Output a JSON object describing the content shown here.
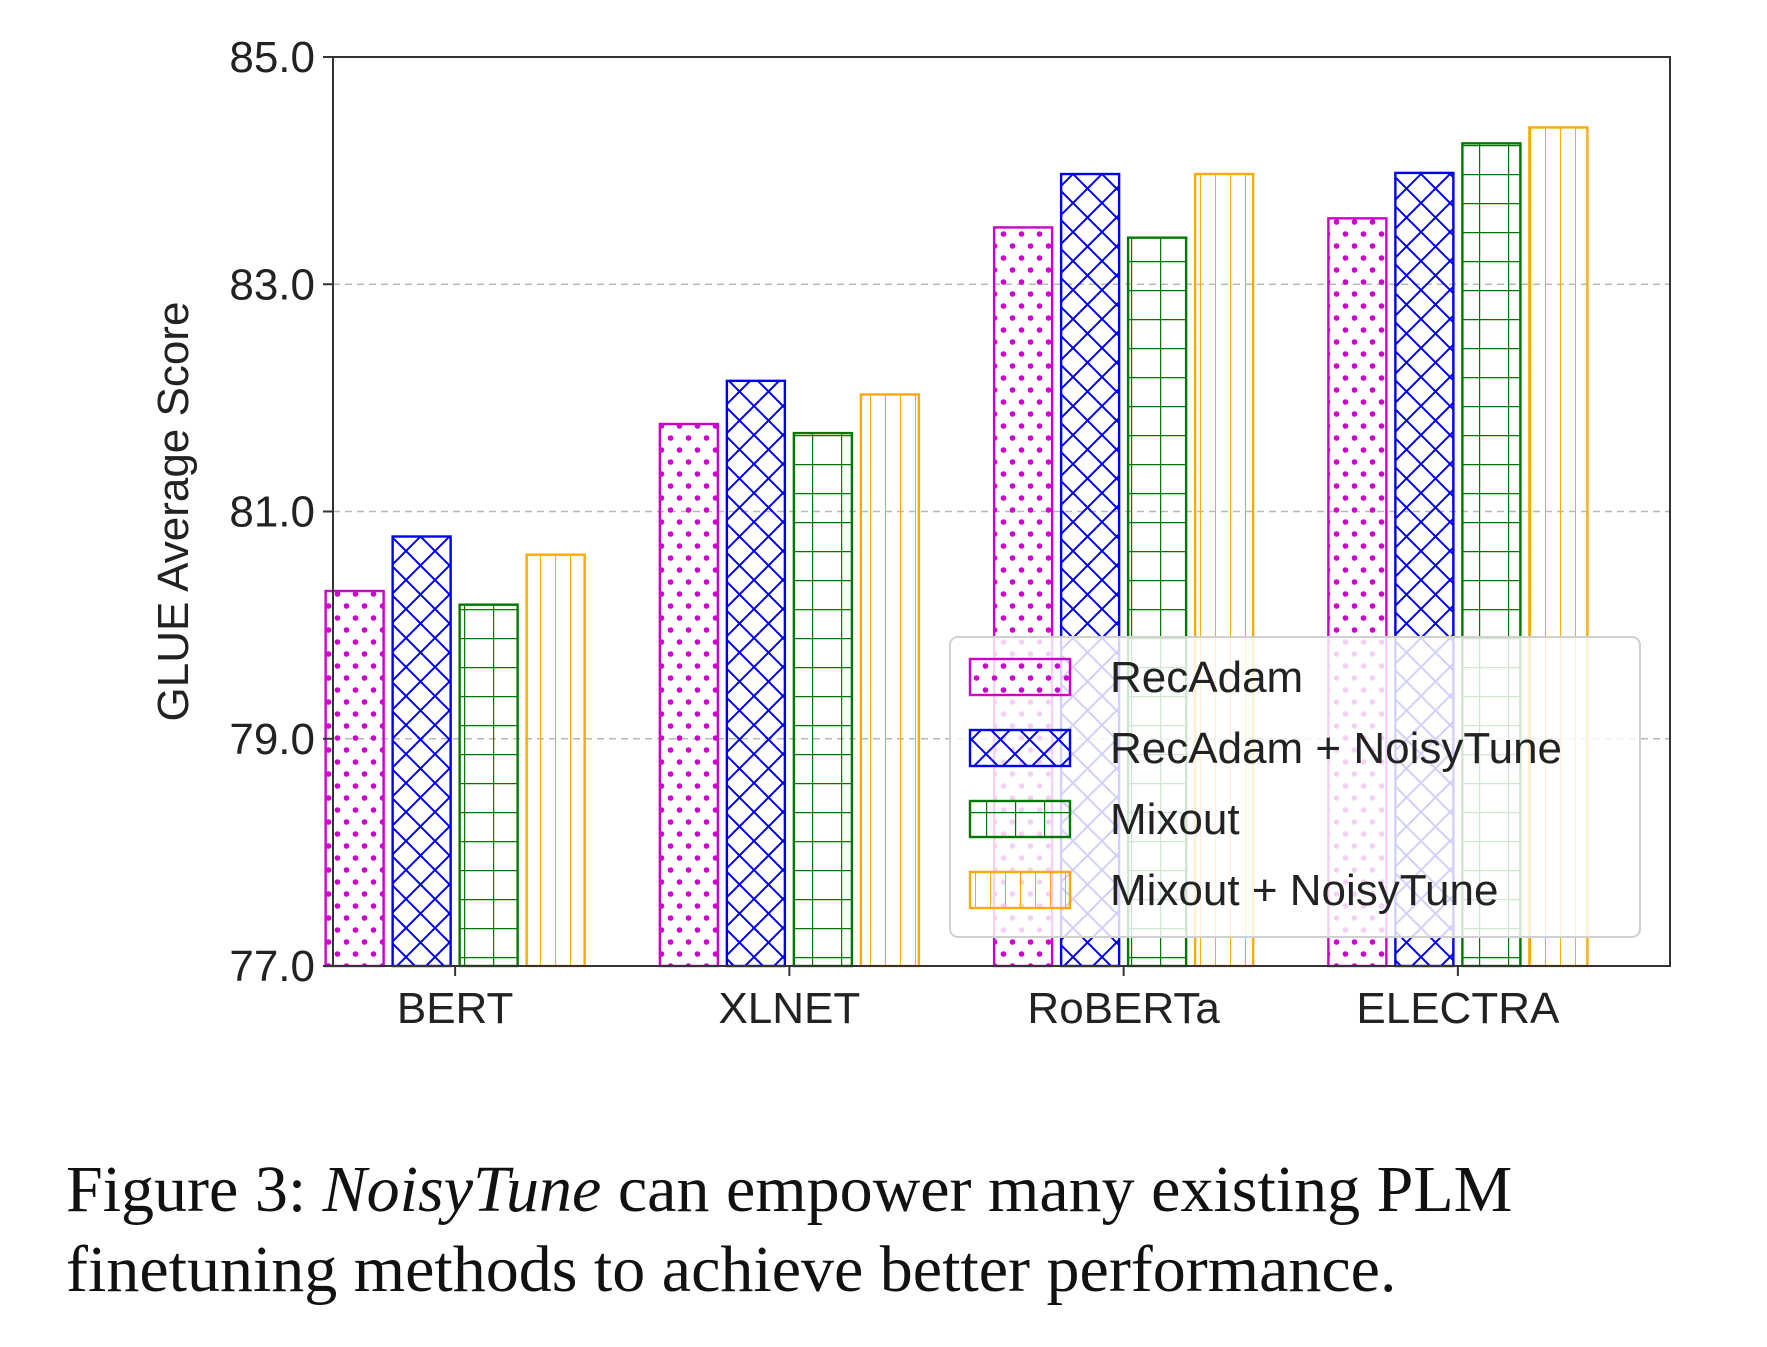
{
  "chart_data": {
    "type": "bar",
    "title": "",
    "xlabel": "",
    "ylabel": "GLUE Average Score",
    "ylim": [
      77.0,
      85.0
    ],
    "yticks": [
      "77.0",
      "79.0",
      "81.0",
      "83.0",
      "85.0"
    ],
    "categories": [
      "BERT",
      "XLNET",
      "RoBERTa",
      "ELECTRA"
    ],
    "series": [
      {
        "name": "RecAdam",
        "values": [
          80.3,
          81.77,
          83.5,
          83.58
        ],
        "color": "#cc00cc",
        "hatch": "dots"
      },
      {
        "name": "RecAdam + NoisyTune",
        "values": [
          80.78,
          82.15,
          83.97,
          83.98
        ],
        "color": "#0000ee",
        "hatch": "crosshatch"
      },
      {
        "name": "Mixout",
        "values": [
          80.18,
          81.69,
          83.41,
          84.24
        ],
        "color": "#007700",
        "hatch": "grid"
      },
      {
        "name": "Mixout + NoisyTune",
        "values": [
          80.62,
          82.03,
          83.97,
          84.38
        ],
        "color": "#ffaa00",
        "hatch": "vertical"
      }
    ],
    "grid": "horizontal-dashed",
    "legend_position": "lower-right"
  },
  "caption": {
    "prefix": "Figure 3: ",
    "emphasis": "NoisyTune",
    "rest": " can empower many existing PLM finetuning methods to achieve better performance."
  }
}
